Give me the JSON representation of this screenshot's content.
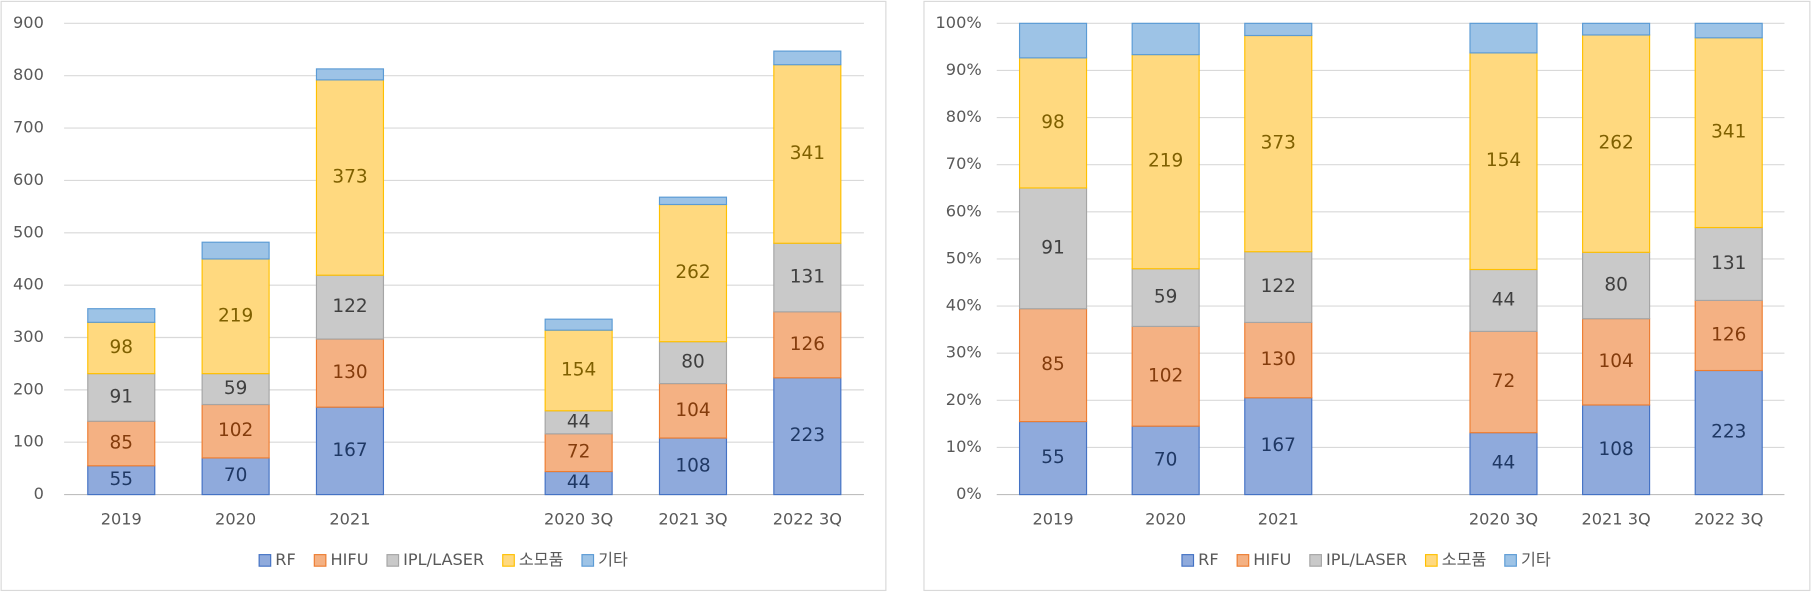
{
  "chart_data": [
    {
      "type": "bar",
      "stack": "normal",
      "categories": [
        "2019",
        "2020",
        "2021",
        null,
        "2020 3Q",
        "2021 3Q",
        "2022 3Q"
      ],
      "series": [
        {
          "name": "RF",
          "color": "#8faadc",
          "values": [
            55,
            70,
            167,
            null,
            44,
            108,
            223
          ],
          "data_labels": true
        },
        {
          "name": "HIFU",
          "color": "#f4b183",
          "values": [
            85,
            102,
            130,
            null,
            72,
            104,
            126
          ],
          "data_labels": true
        },
        {
          "name": "IPL/LASER",
          "color": "#c9c9c9",
          "values": [
            91,
            59,
            122,
            null,
            44,
            80,
            131
          ],
          "data_labels": true
        },
        {
          "name": "소모품",
          "color": "#ffd97f",
          "values": [
            98,
            219,
            373,
            null,
            154,
            262,
            341
          ],
          "data_labels": true
        },
        {
          "name": "기타",
          "color": "#9dc3e6",
          "values": [
            26,
            32,
            21,
            null,
            21,
            14,
            26
          ],
          "data_labels": false
        }
      ],
      "ylim": [
        0,
        900
      ],
      "yticks": [
        0,
        100,
        200,
        300,
        400,
        500,
        600,
        700,
        800,
        900
      ],
      "grid": true,
      "legend": "bottom"
    },
    {
      "type": "bar",
      "stack": "percent",
      "categories": [
        "2019",
        "2020",
        "2021",
        null,
        "2020 3Q",
        "2021 3Q",
        "2022 3Q"
      ],
      "series": [
        {
          "name": "RF",
          "color": "#8faadc",
          "values": [
            55,
            70,
            167,
            null,
            44,
            108,
            223
          ],
          "data_labels": true
        },
        {
          "name": "HIFU",
          "color": "#f4b183",
          "values": [
            85,
            102,
            130,
            null,
            72,
            104,
            126
          ],
          "data_labels": true
        },
        {
          "name": "IPL/LASER",
          "color": "#c9c9c9",
          "values": [
            91,
            59,
            122,
            null,
            44,
            80,
            131
          ],
          "data_labels": true
        },
        {
          "name": "소모품",
          "color": "#ffd97f",
          "values": [
            98,
            219,
            373,
            null,
            154,
            262,
            341
          ],
          "data_labels": true
        },
        {
          "name": "기타",
          "color": "#9dc3e6",
          "values": [
            26,
            32,
            21,
            null,
            21,
            14,
            26
          ],
          "data_labels": false
        }
      ],
      "ylim": [
        0,
        100
      ],
      "yticks": [
        {
          "value": 0,
          "label": "0%"
        },
        {
          "value": 10,
          "label": "10%"
        },
        {
          "value": 20,
          "label": "20%"
        },
        {
          "value": 30,
          "label": "30%"
        },
        {
          "value": 40,
          "label": "40%"
        },
        {
          "value": 50,
          "label": "50%"
        },
        {
          "value": 60,
          "label": "60%"
        },
        {
          "value": 70,
          "label": "70%"
        },
        {
          "value": 80,
          "label": "80%"
        },
        {
          "value": 90,
          "label": "90%"
        },
        {
          "value": 100,
          "label": "100%"
        }
      ],
      "grid": true,
      "legend": "bottom"
    }
  ]
}
